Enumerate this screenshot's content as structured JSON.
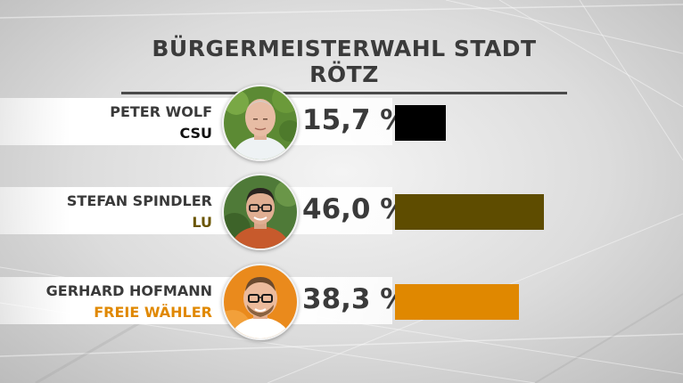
{
  "chart_data": {
    "type": "bar",
    "orientation": "horizontal",
    "title": "BÜRGERMEISTERWAHL STADT RÖTZ",
    "unit": "%",
    "categories": [
      "PETER WOLF",
      "STEFAN SPINDLER",
      "GERHARD HOFMANN"
    ],
    "parties": [
      "CSU",
      "LU",
      "FREIE WÄHLER"
    ],
    "values": [
      15.7,
      46.0,
      38.3
    ],
    "value_labels": [
      "15,7 %",
      "46,0 %",
      "38,3 %"
    ],
    "colors": [
      "#000000",
      "#5e4c00",
      "#e08800"
    ],
    "party_text_colors": [
      "#111111",
      "#6a5500",
      "#e08800"
    ],
    "xlim": [
      0,
      100
    ],
    "grid": false,
    "legend": "none"
  }
}
